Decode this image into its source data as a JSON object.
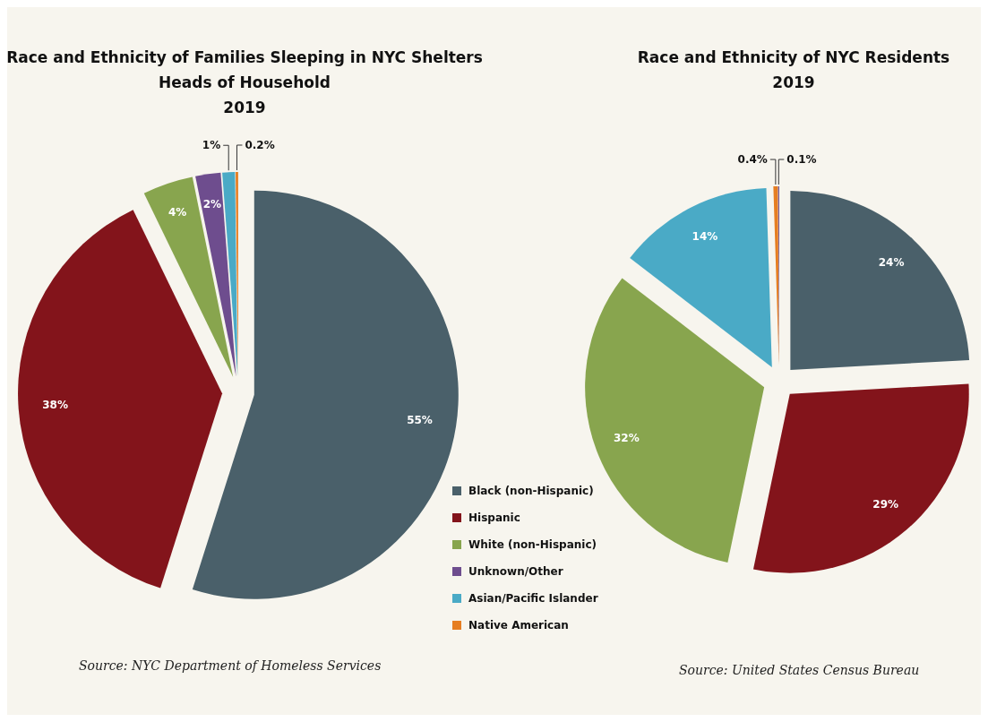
{
  "chart_data": [
    {
      "type": "pie",
      "title": "Race and Ethnicity of Families Sleeping in NYC Shelters\nHeads of Household\n2019",
      "categories": [
        "Black (non-Hispanic)",
        "Hispanic",
        "White (non-Hispanic)",
        "Unknown/Other",
        "Asian/Pacific Islander",
        "Native American"
      ],
      "values": [
        55,
        38,
        4,
        2,
        1,
        0.2
      ],
      "value_labels": [
        "55%",
        "38%",
        "4%",
        "2%",
        "1%",
        "0.2%"
      ],
      "colors": [
        "#4a606a",
        "#83141b",
        "#88a54e",
        "#6e4d8e",
        "#4aaac6",
        "#e67e22"
      ],
      "legend": "bottom right",
      "annotations": [
        "Source: NYC Department of Homeless Services"
      ]
    },
    {
      "type": "pie",
      "title": "Race and Ethnicity of NYC Residents\n2019",
      "categories": [
        null,
        null,
        null,
        null,
        null,
        null
      ],
      "values": [
        24,
        29,
        32,
        14,
        0.4,
        0.1
      ],
      "value_labels": [
        "24%",
        "29%",
        "32%",
        "14%",
        "0.4%",
        "0.1%"
      ],
      "colors": [
        "#4a606a",
        "#83141b",
        "#88a54e",
        "#4aaac6",
        "#e67e22",
        "#6e4d8e"
      ],
      "annotations": [
        "Source: United States Census Bureau"
      ]
    }
  ]
}
